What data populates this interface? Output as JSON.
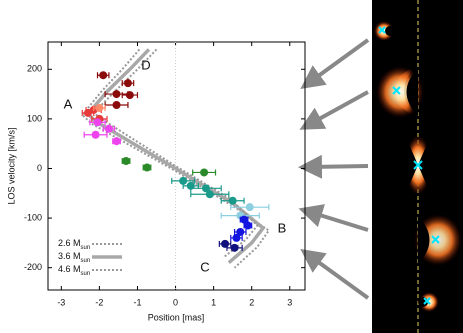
{
  "chart_data": {
    "type": "scatter",
    "xlabel": "Position [mas]",
    "ylabel": "LOS velocity [km/s]",
    "xlim": [
      -3.35,
      3.4
    ],
    "ylim": [
      -245,
      255
    ],
    "xticks": [
      -3,
      -2,
      -1,
      0,
      1,
      2,
      3
    ],
    "yticks": [
      -200,
      -100,
      0,
      100,
      200
    ],
    "annotations": [
      "A",
      "B",
      "C",
      "D"
    ],
    "series": [
      {
        "color": "#8b0a0a",
        "x": [
          -1.9,
          -1.25,
          -1.55,
          -1.2,
          -1.55
        ],
        "values": [
          188,
          172,
          150,
          148,
          128
        ],
        "xerr": [
          0.15,
          0.15,
          0.3,
          0.2,
          0.3
        ]
      },
      {
        "color": "#e83a3a",
        "x": [
          -2.15,
          -2.3,
          -2.0
        ],
        "values": [
          118,
          112,
          100
        ],
        "xerr": [
          0.2,
          0.15,
          0.2
        ]
      },
      {
        "color": "#ff8a6a",
        "x": [
          -2.0
        ],
        "values": [
          122
        ],
        "xerr": [
          0.15
        ]
      },
      {
        "color": "#ee44ee",
        "x": [
          -2.05,
          -1.75,
          -2.1,
          -1.55
        ],
        "values": [
          93,
          80,
          68,
          55
        ],
        "xerr": [
          0.2,
          0.15,
          0.3,
          0.1
        ]
      },
      {
        "color": "#2a8a2a",
        "x": [
          -1.3,
          -0.75,
          0.75
        ],
        "values": [
          15,
          2,
          -8
        ],
        "xerr": [
          0.1,
          0.1,
          0.3
        ]
      },
      {
        "color": "#1a9a8a",
        "x": [
          0.2,
          0.4,
          0.8,
          0.9,
          1.5
        ],
        "values": [
          -25,
          -35,
          -40,
          -52,
          -65
        ],
        "xerr": [
          0.3,
          0.2,
          0.4,
          0.5,
          0.3
        ]
      },
      {
        "color": "#8ccfe0",
        "x": [
          1.95,
          1.7
        ],
        "values": [
          -78,
          -95
        ],
        "xerr": [
          0.5,
          0.5
        ]
      },
      {
        "color": "#1515e0",
        "x": [
          1.8,
          1.9,
          1.7,
          1.6
        ],
        "values": [
          -103,
          -115,
          -128,
          -140
        ],
        "xerr": [
          0.1,
          0.1,
          0.15,
          0.15
        ]
      },
      {
        "color": "#12127e",
        "x": [
          1.3,
          1.55
        ],
        "values": [
          -152,
          -160
        ],
        "xerr": [
          0.15,
          0.2
        ]
      }
    ],
    "models": [
      {
        "name": "2.6 M",
        "subscript": "sun",
        "style": "dotted",
        "color": "#999999",
        "x": [
          -0.95,
          -1.4,
          -1.95,
          -2.45,
          -2.2,
          0,
          1.55,
          2.45,
          2.15,
          1.55
        ],
        "values": [
          240,
          200,
          155,
          108,
          90,
          -5,
          -78,
          -125,
          -158,
          -200
        ]
      },
      {
        "name": "3.6 M",
        "subscript": "sun",
        "style": "solid",
        "color": "#a8a8a8",
        "x": [
          -0.7,
          -1.2,
          -1.8,
          -2.3,
          -2.1,
          0,
          1.5,
          2.3,
          2.0,
          1.4
        ],
        "values": [
          240,
          200,
          155,
          110,
          95,
          0,
          -70,
          -120,
          -150,
          -190
        ]
      },
      {
        "name": "4.6 M",
        "subscript": "sun",
        "style": "dotted",
        "color": "#999999",
        "x": [
          -0.5,
          -1.0,
          -1.6,
          -2.15,
          -1.95,
          0,
          1.45,
          2.15,
          1.85,
          1.25
        ],
        "values": [
          240,
          200,
          155,
          112,
          100,
          5,
          -62,
          -115,
          -143,
          -180
        ]
      }
    ]
  }
}
